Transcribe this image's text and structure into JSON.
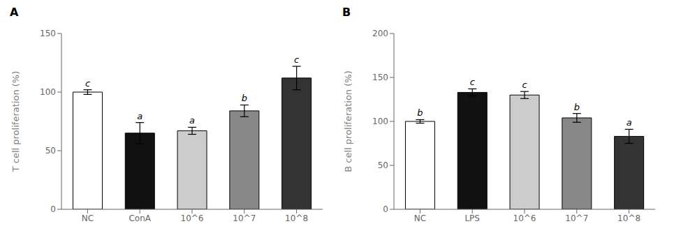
{
  "chart_data": [
    {
      "type": "bar",
      "title": "A",
      "categories": [
        "NC",
        "ConA",
        "10^6",
        "10^7",
        "10^8"
      ],
      "values": [
        100,
        65,
        67,
        84,
        112
      ],
      "errors": [
        2,
        9,
        3,
        5,
        10
      ],
      "colors": [
        "#ffffff",
        "#111111",
        "#cccccc",
        "#888888",
        "#333333"
      ],
      "annotations": [
        "c",
        "a",
        "a",
        "b",
        "c"
      ],
      "ylabel": "T cell proliferation (%)",
      "ylim": [
        0,
        150
      ],
      "yticks": [
        0,
        50,
        100,
        150
      ],
      "grid": false
    },
    {
      "type": "bar",
      "title": "B",
      "categories": [
        "NC",
        "LPS",
        "10^6",
        "10^7",
        "10^8"
      ],
      "values": [
        100,
        133,
        130,
        104,
        83
      ],
      "errors": [
        2,
        4,
        4,
        5,
        8
      ],
      "colors": [
        "#ffffff",
        "#111111",
        "#cccccc",
        "#888888",
        "#333333"
      ],
      "annotations": [
        "b",
        "c",
        "c",
        "b",
        "a"
      ],
      "ylabel": "B cell proliferation (%)",
      "ylim": [
        0,
        200
      ],
      "yticks": [
        0,
        50,
        100,
        150,
        200
      ],
      "grid": false
    }
  ]
}
